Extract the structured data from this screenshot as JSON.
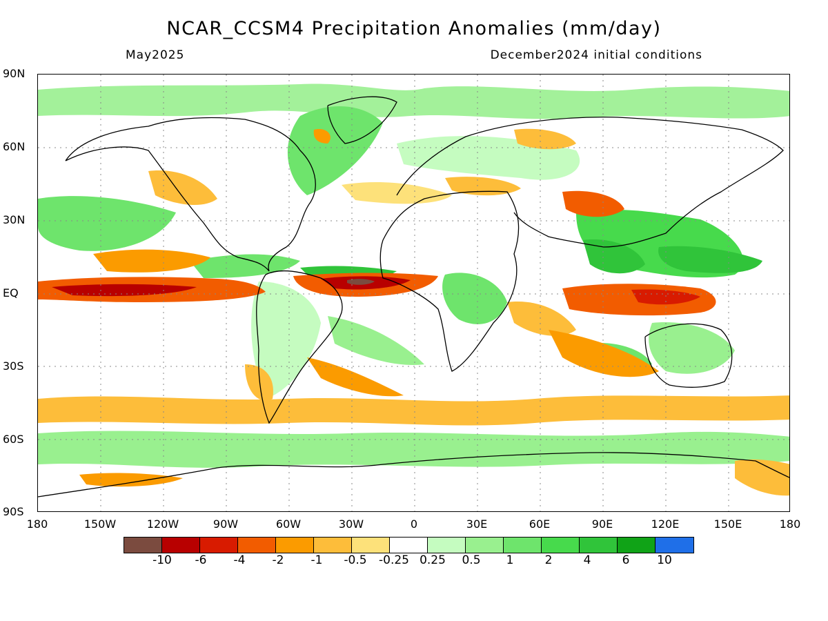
{
  "header": {
    "title": "NCAR_CCSM4 Precipitation Anomalies (mm/day)",
    "target_month": "May2025",
    "initial_conditions": "December2024 initial conditions"
  },
  "axes": {
    "lat_labels": [
      "90N",
      "60N",
      "30N",
      "EQ",
      "30S",
      "60S",
      "90S"
    ],
    "lon_labels": [
      "180",
      "150W",
      "120W",
      "90W",
      "60W",
      "30W",
      "0",
      "30E",
      "60E",
      "90E",
      "120E",
      "150E",
      "180"
    ]
  },
  "colorbar": {
    "colors": [
      "#7b4b3f",
      "#b80000",
      "#d81b00",
      "#f25c00",
      "#fb9b00",
      "#fdbd3a",
      "#fde17a",
      "#ffffff",
      "#c5fcc0",
      "#99f08f",
      "#6ee46c",
      "#47da4c",
      "#30c43a",
      "#10a317",
      "#1f6fe8"
    ],
    "labels": [
      "-10",
      "-6",
      "-4",
      "-2",
      "-1",
      "-0.5",
      "-0.25",
      "0.25",
      "0.5",
      "1",
      "2",
      "4",
      "6",
      "10"
    ]
  },
  "colors": {
    "strong_dry": "#b80000",
    "dry": "#f25c00",
    "moderate_dry": "#fb9b00",
    "slight_dry": "#fdbd3a",
    "very_slight_dry": "#fde17a",
    "slight_wet": "#c5fcc0",
    "wet": "#6ee46c",
    "moderate_wet": "#47da4c",
    "strong_wet": "#30c43a",
    "very_wet": "#10a317",
    "extreme_dry": "#7b4b3f"
  }
}
